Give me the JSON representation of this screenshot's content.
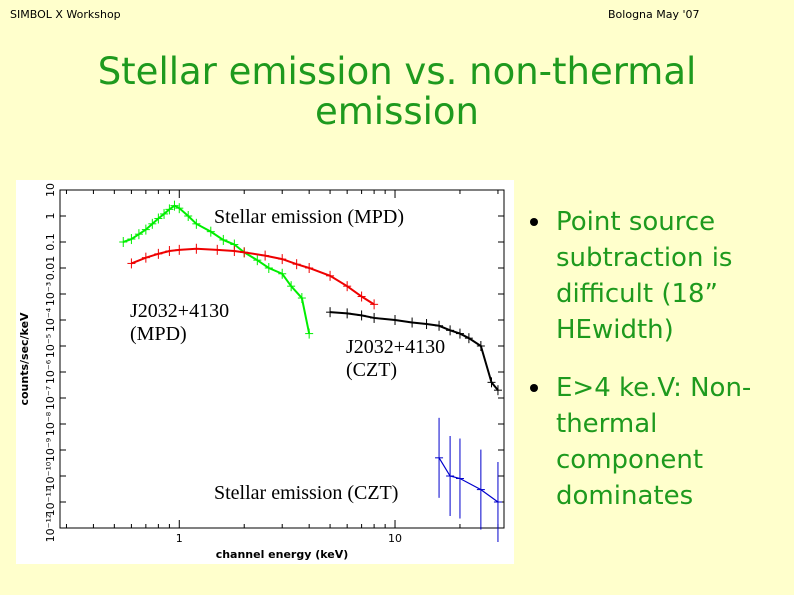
{
  "header": {
    "left": "SIMBOL X Workshop",
    "right": "Bologna May '07"
  },
  "title": "Stellar emission vs. non-thermal emission",
  "bullets": [
    "Point source subtraction is difficult (18” HEwidth)",
    "E>4 ke.V: Non-thermal component dominates"
  ],
  "annotations": {
    "stellar_mpd": "Stellar emission (MPD)",
    "source_mpd_1": "J2032+4130",
    "source_mpd_2": "(MPD)",
    "source_czt_1": "J2032+4130",
    "source_czt_2": "(CZT)",
    "stellar_czt": "Stellar emission (CZT)"
  },
  "colors": {
    "title": "#1e9a1e",
    "background": "#ffffcc",
    "stellar_mpd": "#00ee00",
    "source_mpd": "#ee0000",
    "source_czt": "#000000",
    "stellar_czt": "#0000cc"
  },
  "chart_data": {
    "type": "scatter",
    "xlabel": "channel energy (keV)",
    "ylabel": "counts/sec/keV",
    "x_scale": "log",
    "y_scale": "log",
    "x_ticks": [
      1,
      10
    ],
    "y_ticks": [
      "10",
      "1",
      "0.1",
      "0.01",
      "10⁻³",
      "10⁻⁴",
      "10⁻⁵",
      "10⁻⁶",
      "10⁻⁷",
      "10⁻⁸",
      "10⁻⁹",
      "10⁻¹⁰",
      "10⁻¹¹",
      "10⁻¹²"
    ],
    "series": [
      {
        "name": "Stellar emission (MPD)",
        "color": "#00ee00",
        "x": [
          0.55,
          0.6,
          0.65,
          0.7,
          0.75,
          0.8,
          0.85,
          0.9,
          0.95,
          1.0,
          1.1,
          1.2,
          1.4,
          1.6,
          1.8,
          2.0,
          2.3,
          2.6,
          3.0,
          3.3,
          3.7,
          4.0
        ],
        "y": [
          0.1,
          0.13,
          0.2,
          0.3,
          0.5,
          0.8,
          1.2,
          1.8,
          2.5,
          2.0,
          1.0,
          0.5,
          0.25,
          0.12,
          0.08,
          0.04,
          0.02,
          0.01,
          0.006,
          0.002,
          0.0007,
          3e-05
        ]
      },
      {
        "name": "J2032+4130 (MPD)",
        "color": "#ee0000",
        "x": [
          0.6,
          0.7,
          0.8,
          0.9,
          1.0,
          1.2,
          1.5,
          1.8,
          2.0,
          2.5,
          3.0,
          3.5,
          4.0,
          5.0,
          6.0,
          7.0,
          8.0
        ],
        "y": [
          0.015,
          0.025,
          0.035,
          0.045,
          0.05,
          0.055,
          0.05,
          0.045,
          0.04,
          0.03,
          0.022,
          0.014,
          0.01,
          0.005,
          0.002,
          0.0008,
          0.0004
        ]
      },
      {
        "name": "J2032+4130 (CZT)",
        "color": "#000000",
        "x": [
          5,
          6,
          7,
          8,
          10,
          12,
          14,
          16,
          18,
          20,
          22,
          25,
          28,
          30
        ],
        "y": [
          0.0002,
          0.00018,
          0.00015,
          0.00012,
          0.0001,
          8e-05,
          7e-05,
          6e-05,
          4e-05,
          3e-05,
          2e-05,
          1e-05,
          4e-07,
          2e-07
        ]
      },
      {
        "name": "Stellar emission (CZT)",
        "color": "#0000cc",
        "x": [
          16,
          18,
          20,
          25,
          30
        ],
        "y": [
          5e-10,
          1e-10,
          8e-11,
          3e-11,
          1e-11
        ]
      }
    ]
  }
}
